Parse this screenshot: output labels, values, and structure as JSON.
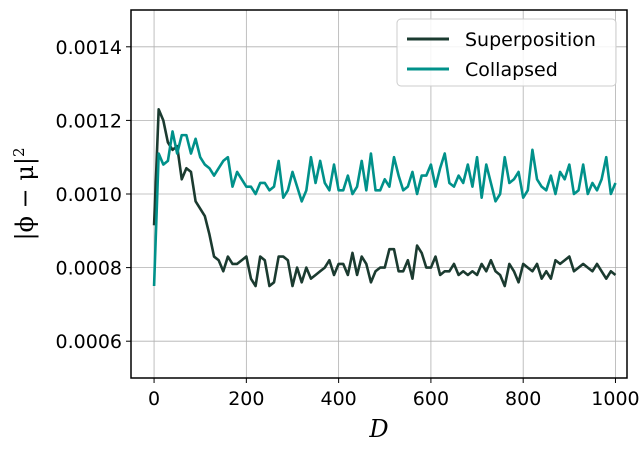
{
  "chart_data": {
    "type": "line",
    "xlabel": "D",
    "ylabel_parts": [
      "|ϕ − μ|",
      "2"
    ],
    "xlim": [
      -50,
      1025
    ],
    "ylim": [
      0.0005,
      0.0015
    ],
    "xticks": [
      0,
      200,
      400,
      600,
      800,
      1000
    ],
    "xtick_labels": [
      "0",
      "200",
      "400",
      "600",
      "800",
      "1000"
    ],
    "yticks": [
      0.0006,
      0.0008,
      0.001,
      0.0012,
      0.0014
    ],
    "ytick_labels": [
      "0.0006",
      "0.0008",
      "0.0010",
      "0.0012",
      "0.0014"
    ],
    "grid": true,
    "legend_position": "top-right",
    "x": [
      0,
      10,
      20,
      30,
      40,
      50,
      60,
      70,
      80,
      90,
      100,
      110,
      120,
      130,
      140,
      150,
      160,
      170,
      180,
      190,
      200,
      210,
      220,
      230,
      240,
      250,
      260,
      270,
      280,
      290,
      300,
      310,
      320,
      330,
      340,
      350,
      360,
      370,
      380,
      390,
      400,
      410,
      420,
      430,
      440,
      450,
      460,
      470,
      480,
      490,
      500,
      510,
      520,
      530,
      540,
      550,
      560,
      570,
      580,
      590,
      600,
      610,
      620,
      630,
      640,
      650,
      660,
      670,
      680,
      690,
      700,
      710,
      720,
      730,
      740,
      750,
      760,
      770,
      780,
      790,
      800,
      810,
      820,
      830,
      840,
      850,
      860,
      870,
      880,
      890,
      900,
      910,
      920,
      930,
      940,
      950,
      960,
      970,
      980,
      990,
      1000
    ],
    "series": [
      {
        "name": "Superposition",
        "color": "#1b3b30",
        "values": [
          0.000915,
          0.00123,
          0.0012,
          0.00114,
          0.00112,
          0.00113,
          0.00104,
          0.00107,
          0.00106,
          0.00098,
          0.00096,
          0.00094,
          0.00089,
          0.00083,
          0.00082,
          0.00079,
          0.00083,
          0.00081,
          0.00081,
          0.00082,
          0.00083,
          0.00077,
          0.00075,
          0.00083,
          0.00082,
          0.00075,
          0.00076,
          0.00083,
          0.00083,
          0.00082,
          0.00075,
          0.0008,
          0.00076,
          0.0008,
          0.00077,
          0.00078,
          0.00079,
          0.0008,
          0.00082,
          0.00078,
          0.00081,
          0.00081,
          0.00078,
          0.00084,
          0.00078,
          0.00083,
          0.00081,
          0.00076,
          0.00079,
          0.0008,
          0.0008,
          0.00085,
          0.00085,
          0.00079,
          0.00079,
          0.00082,
          0.00077,
          0.00086,
          0.00084,
          0.0008,
          0.0008,
          0.00083,
          0.00078,
          0.00079,
          0.00079,
          0.00081,
          0.00078,
          0.00079,
          0.00078,
          0.00079,
          0.00078,
          0.00081,
          0.00079,
          0.00082,
          0.00079,
          0.00078,
          0.00075,
          0.00081,
          0.00079,
          0.00076,
          0.00081,
          0.0008,
          0.00079,
          0.00081,
          0.00077,
          0.00079,
          0.00077,
          0.00082,
          0.00081,
          0.00082,
          0.00083,
          0.00079,
          0.0008,
          0.00081,
          0.0008,
          0.00079,
          0.00081,
          0.00079,
          0.00077,
          0.00079,
          0.00078
        ]
      },
      {
        "name": "Collapsed",
        "color": "#00918a",
        "values": [
          0.00075,
          0.00111,
          0.00108,
          0.00109,
          0.00117,
          0.00111,
          0.00116,
          0.00116,
          0.00111,
          0.00115,
          0.0011,
          0.00108,
          0.00107,
          0.00105,
          0.00107,
          0.00109,
          0.0011,
          0.00102,
          0.00106,
          0.00104,
          0.00102,
          0.00102,
          0.001,
          0.00103,
          0.00103,
          0.00101,
          0.00102,
          0.00109,
          0.00099,
          0.00101,
          0.00106,
          0.00102,
          0.00098,
          0.00101,
          0.0011,
          0.00103,
          0.00109,
          0.00103,
          0.00101,
          0.00108,
          0.00101,
          0.00101,
          0.00105,
          0.001,
          0.00102,
          0.00109,
          0.00101,
          0.00111,
          0.00101,
          0.00101,
          0.00104,
          0.00102,
          0.0011,
          0.00105,
          0.00101,
          0.00102,
          0.00106,
          0.001,
          0.00105,
          0.00105,
          0.00108,
          0.00102,
          0.00107,
          0.00111,
          0.00103,
          0.00102,
          0.00105,
          0.00103,
          0.00108,
          0.00102,
          0.0011,
          0.00099,
          0.00108,
          0.00103,
          0.00098,
          0.001,
          0.0011,
          0.00103,
          0.00104,
          0.00106,
          0.00099,
          0.00101,
          0.00112,
          0.00104,
          0.00102,
          0.00101,
          0.00105,
          0.001,
          0.00106,
          0.00104,
          0.00108,
          0.001,
          0.00101,
          0.00108,
          0.001,
          0.00103,
          0.00101,
          0.00104,
          0.0011,
          0.001,
          0.00103
        ]
      }
    ]
  }
}
